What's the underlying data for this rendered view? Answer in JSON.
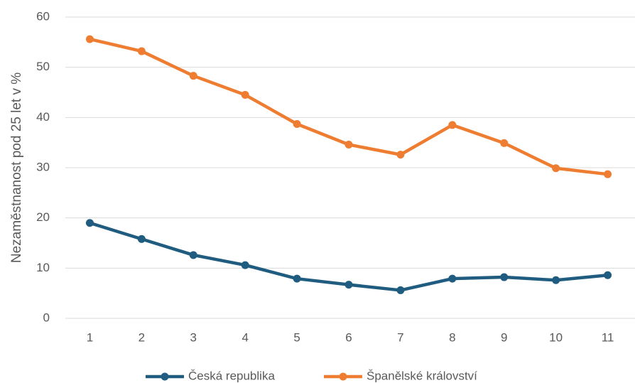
{
  "chart_data": {
    "type": "line",
    "y_label": "Nezaměstnanost pod 25 let v %",
    "categories": [
      "1",
      "2",
      "3",
      "4",
      "5",
      "6",
      "7",
      "8",
      "9",
      "10",
      "11"
    ],
    "series": [
      {
        "name": "Česká republika",
        "color": "#1f5c7f",
        "values": [
          19.0,
          15.8,
          12.6,
          10.6,
          7.9,
          6.7,
          5.6,
          7.9,
          8.2,
          7.6,
          8.6
        ]
      },
      {
        "name": "Španělské království",
        "color": "#ee7d31",
        "values": [
          55.6,
          53.2,
          48.3,
          44.5,
          38.7,
          34.6,
          32.6,
          38.5,
          34.9,
          29.9,
          28.7
        ]
      }
    ],
    "ylim": [
      0,
      60
    ],
    "yticks": [
      0,
      10,
      20,
      30,
      40,
      50,
      60
    ],
    "grid": true,
    "legend": "bottom"
  }
}
